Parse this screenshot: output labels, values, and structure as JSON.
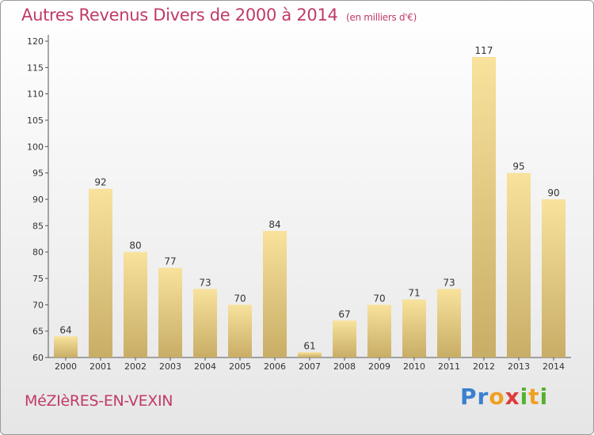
{
  "chart_data": {
    "type": "bar",
    "title": "Autres Revenus Divers de 2000 à 2014",
    "subtitle": "(en milliers d'€)",
    "categories": [
      "2000",
      "2001",
      "2002",
      "2003",
      "2004",
      "2005",
      "2006",
      "2007",
      "2008",
      "2009",
      "2010",
      "2011",
      "2012",
      "2013",
      "2014"
    ],
    "values": [
      64,
      92,
      80,
      77,
      73,
      70,
      84,
      61,
      67,
      70,
      71,
      73,
      117,
      95,
      90
    ],
    "yticks": [
      60,
      65,
      70,
      75,
      80,
      85,
      90,
      95,
      100,
      105,
      110,
      115,
      120
    ],
    "ylim": [
      60,
      120
    ],
    "grid": false,
    "colors": {
      "bar_light": "#f8e29c",
      "bar_dark": "#c8ad66",
      "axis": "#555555"
    }
  },
  "footer": {
    "location": "MéZIèRES-EN-VEXIN",
    "logo_letters": [
      {
        "ch": "P",
        "color": "#3a7fd0"
      },
      {
        "ch": "r",
        "color": "#3a7fd0"
      },
      {
        "ch": "o",
        "color": "#f0a020"
      },
      {
        "ch": "x",
        "color": "#e03a3a"
      },
      {
        "ch": "i",
        "color": "#55b030"
      },
      {
        "ch": "t",
        "color": "#f0a020"
      },
      {
        "ch": "i",
        "color": "#55b030"
      }
    ]
  }
}
